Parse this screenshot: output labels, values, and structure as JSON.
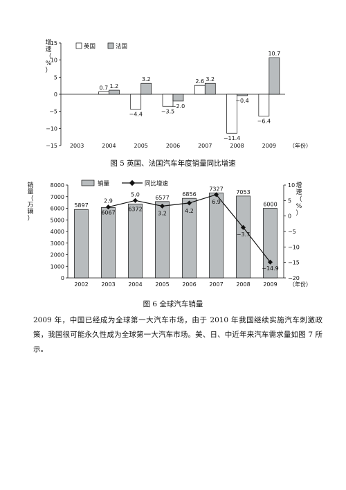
{
  "chart_data": [
    {
      "type": "bar",
      "ylabel": "增速（%）",
      "xlabel": "（年份）",
      "categories": [
        "2003",
        "2004",
        "2005",
        "2006",
        "2007",
        "2008",
        "2009"
      ],
      "ylim": [
        -15,
        15
      ],
      "yticks": [
        15,
        10,
        5,
        0,
        -5,
        -10,
        -15
      ],
      "legend_position": "top-left",
      "series": [
        {
          "name": "英国",
          "color": "#ffffff",
          "values": [
            null,
            0.7,
            -4.4,
            -3.5,
            2.6,
            -11.4,
            -6.4
          ],
          "labels": [
            "",
            "0.7",
            "−4.4",
            "−3.5",
            "2.6",
            "−11.4",
            "−6.4"
          ]
        },
        {
          "name": "法国",
          "color": "#b8bcbe",
          "values": [
            null,
            1.2,
            3.2,
            -2.0,
            3.2,
            -0.4,
            10.7
          ],
          "labels": [
            "",
            "1.2",
            "3.2",
            "−2.0",
            "3.2",
            "−0.4",
            "10.7"
          ]
        }
      ]
    },
    {
      "type": "bar+line",
      "ylabel": "销量（万辆）",
      "y2label": "增速（%）",
      "xlabel": "（年份）",
      "categories": [
        "2002",
        "2003",
        "2004",
        "2005",
        "2006",
        "2007",
        "2008",
        "2009"
      ],
      "ylim": [
        0,
        8000
      ],
      "yticks": [
        8000,
        7000,
        6000,
        5000,
        4000,
        3000,
        2000,
        1000,
        0
      ],
      "y2lim": [
        -20,
        10
      ],
      "y2ticks": [
        10,
        5,
        0,
        -5,
        -10,
        -15,
        -20
      ],
      "legend_position": "top",
      "bar_series": {
        "name": "销量",
        "color": "#b8bcbe",
        "values": [
          5897,
          6067,
          6372,
          6577,
          6856,
          7327,
          7053,
          6000
        ]
      },
      "line_series": {
        "name": "同比增速",
        "color": "#111111",
        "values": [
          null,
          2.9,
          5.0,
          3.2,
          4.2,
          6.9,
          -3.7,
          -14.9
        ],
        "labels": [
          "",
          "2.9",
          "5.0",
          "3.2",
          "4.2",
          "6.9",
          "−3.7",
          "−14.9"
        ]
      }
    }
  ],
  "captions": {
    "fig5": "图 5  英国、法国汽车年度销量同比增速",
    "fig6": "图 6  全球汽车销量"
  },
  "paragraph": "2009 年，中国已经成为全球第一大汽车市场，由于 2010 年我国继续实施汽车刺激政策，我国很可能永久性成为全球第一大汽车市场。美、日、中近年来汽车需求量如图 7 所示。"
}
